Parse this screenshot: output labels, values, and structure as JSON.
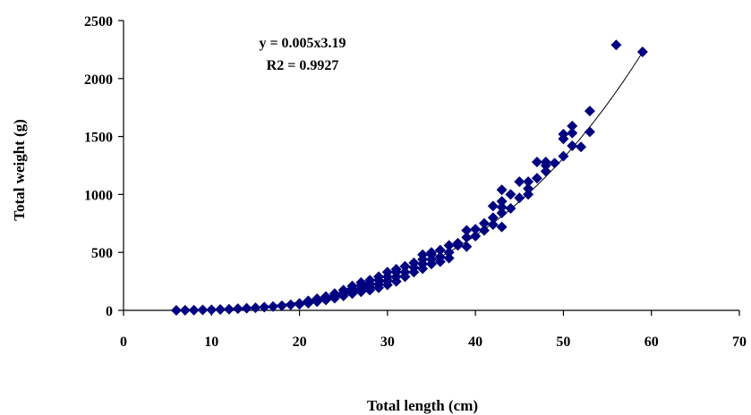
{
  "chart_data": {
    "type": "scatter",
    "title": "",
    "xlabel": "Total length (cm)",
    "ylabel": "Total weight (g)",
    "xlim": [
      0,
      70
    ],
    "ylim": [
      0,
      2500
    ],
    "xticks": [
      "0",
      "10",
      "20",
      "30",
      "40",
      "50",
      "60",
      "70"
    ],
    "yticks": [
      "0",
      "500",
      "1000",
      "1500",
      "2000",
      "2500"
    ],
    "grid": false,
    "legend": "none",
    "marker": "diamond",
    "marker_color": "#000080",
    "trendline": {
      "type": "power",
      "a": 0.005,
      "b": 3.19,
      "x_range": [
        6,
        59
      ],
      "color": "#000000",
      "equation_label": "y = 0.005x3.19",
      "r2_label": "R2 = 0.9927"
    },
    "series": [
      {
        "x": [
          6,
          7,
          8,
          9,
          10,
          11,
          12,
          13,
          14,
          15,
          16,
          17,
          18,
          19,
          20,
          20,
          21,
          21,
          21,
          22,
          22,
          22,
          23,
          23,
          23,
          24,
          24,
          24,
          25,
          25,
          25,
          26,
          26,
          26,
          26,
          27,
          27,
          27,
          27,
          28,
          28,
          28,
          28,
          29,
          29,
          29,
          29,
          30,
          30,
          30,
          30,
          31,
          31,
          31,
          31,
          32,
          32,
          32,
          33,
          33,
          33,
          34,
          34,
          34,
          34,
          35,
          35,
          35,
          35,
          36,
          36,
          36,
          37,
          37,
          37,
          38,
          38,
          39,
          39,
          39,
          40,
          40,
          41,
          41,
          42,
          42,
          42,
          43,
          43,
          43,
          43,
          43,
          44,
          44,
          45,
          45,
          46,
          46,
          46,
          47,
          47,
          48,
          48,
          48,
          49,
          50,
          50,
          50,
          51,
          51,
          51,
          52,
          53,
          53,
          56,
          59
        ],
        "y": [
          0,
          1,
          2,
          4,
          5,
          8,
          10,
          14,
          18,
          22,
          28,
          33,
          40,
          48,
          52,
          60,
          62,
          70,
          82,
          75,
          88,
          100,
          90,
          105,
          120,
          105,
          125,
          145,
          125,
          150,
          175,
          145,
          165,
          190,
          210,
          160,
          185,
          215,
          240,
          175,
          200,
          230,
          260,
          195,
          225,
          260,
          290,
          220,
          255,
          290,
          330,
          250,
          290,
          330,
          355,
          290,
          330,
          380,
          330,
          370,
          410,
          360,
          400,
          440,
          480,
          400,
          440,
          480,
          500,
          420,
          460,
          520,
          450,
          500,
          560,
          560,
          580,
          550,
          630,
          690,
          640,
          700,
          690,
          750,
          740,
          800,
          900,
          720,
          840,
          890,
          940,
          1040,
          880,
          1000,
          970,
          1110,
          1000,
          1050,
          1110,
          1140,
          1280,
          1200,
          1250,
          1280,
          1270,
          1330,
          1480,
          1520,
          1420,
          1530,
          1590,
          1410,
          1540,
          1720,
          2290,
          2230
        ]
      }
    ]
  }
}
